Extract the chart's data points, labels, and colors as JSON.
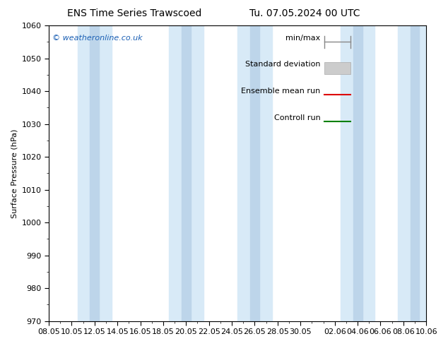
{
  "title_left": "ENS Time Series Trawscoed",
  "title_right": "Tu. 07.05.2024 00 UTC",
  "ylabel": "Surface Pressure (hPa)",
  "ylim": [
    970,
    1060
  ],
  "yticks": [
    970,
    980,
    990,
    1000,
    1010,
    1020,
    1030,
    1040,
    1050,
    1060
  ],
  "xtick_labels": [
    "08.05",
    "10.05",
    "12.05",
    "14.05",
    "16.05",
    "18.05",
    "20.05",
    "22.05",
    "24.05",
    "26.05",
    "28.05",
    "30.05",
    "02.06",
    "04.06",
    "06.06",
    "08.06",
    "10.06"
  ],
  "xtick_positions": [
    0,
    2,
    4,
    6,
    8,
    10,
    12,
    14,
    16,
    18,
    20,
    22,
    25,
    27,
    29,
    31,
    33
  ],
  "xlim": [
    0,
    33
  ],
  "watermark": "© weatheronline.co.uk",
  "legend_items": [
    "min/max",
    "Standard deviation",
    "Ensemble mean run",
    "Controll run"
  ],
  "bg_color": "#ffffff",
  "plot_bg_color": "#ffffff",
  "band_color_outer": "#d8eaf7",
  "band_color_inner": "#bdd5ea",
  "ensemble_mean_color": "#dd0000",
  "control_run_color": "#008000",
  "title_fontsize": 10,
  "axis_label_fontsize": 8,
  "tick_fontsize": 8,
  "legend_fontsize": 8
}
